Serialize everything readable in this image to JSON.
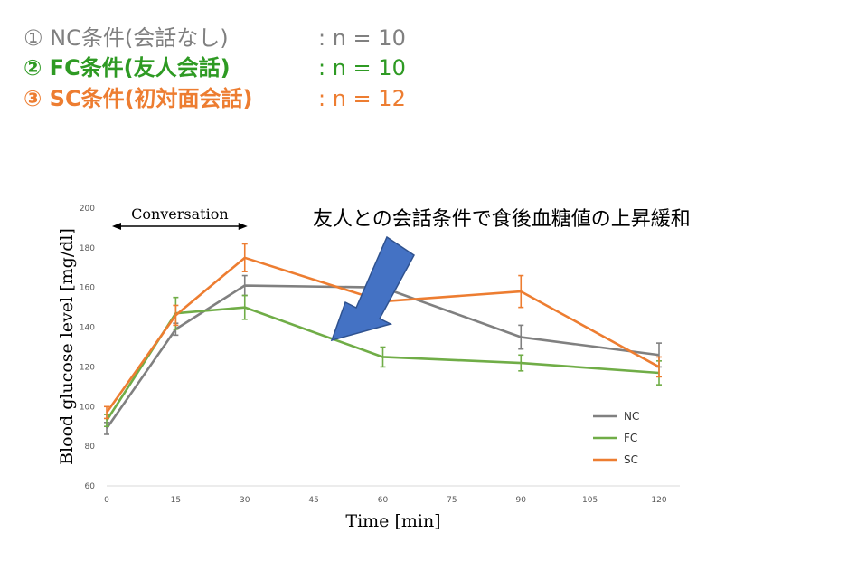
{
  "conditions": [
    {
      "label": "① NC条件(会話なし)",
      "n": ": n = 10",
      "color": "#808080"
    },
    {
      "label": "② FC条件(友人会話)",
      "n": ": n = 10",
      "color": "#2E9A23"
    },
    {
      "label": "③ SC条件(初対面会話)",
      "n": ": n = 12",
      "color": "#ED7D31"
    }
  ],
  "annotation": "友人との会話条件で食後血糖値の上昇緩和",
  "conversation_label": "Conversation",
  "arrow_color": "#4472C4",
  "chart_data": {
    "type": "line",
    "xlabel": "Time [min]",
    "ylabel": "Blood glucose level [mg/dl]",
    "x_ticks": [
      0,
      15,
      30,
      45,
      60,
      75,
      90,
      105,
      120
    ],
    "y_ticks": [
      60,
      80,
      100,
      120,
      140,
      160,
      180,
      200
    ],
    "xlim": [
      0,
      125
    ],
    "ylim": [
      60,
      200
    ],
    "grid": false,
    "legend_position": "bottom-right",
    "conversation_span": [
      0,
      30
    ],
    "series": [
      {
        "name": "NC",
        "color": "#808080",
        "x": [
          0,
          15,
          30,
          60,
          90,
          120
        ],
        "y": [
          89,
          139,
          161,
          160,
          135,
          126
        ],
        "err": [
          3,
          3,
          5,
          5,
          6,
          6
        ]
      },
      {
        "name": "FC",
        "color": "#70AD47",
        "x": [
          0,
          15,
          30,
          60,
          90,
          120
        ],
        "y": [
          93,
          147,
          150,
          125,
          122,
          117
        ],
        "err": [
          3,
          8,
          6,
          5,
          4,
          6
        ]
      },
      {
        "name": "SC",
        "color": "#ED7D31",
        "x": [
          0,
          15,
          30,
          60,
          90,
          120
        ],
        "y": [
          97,
          146,
          175,
          153,
          158,
          120
        ],
        "err": [
          3,
          5,
          7,
          4,
          8,
          5
        ]
      }
    ]
  }
}
